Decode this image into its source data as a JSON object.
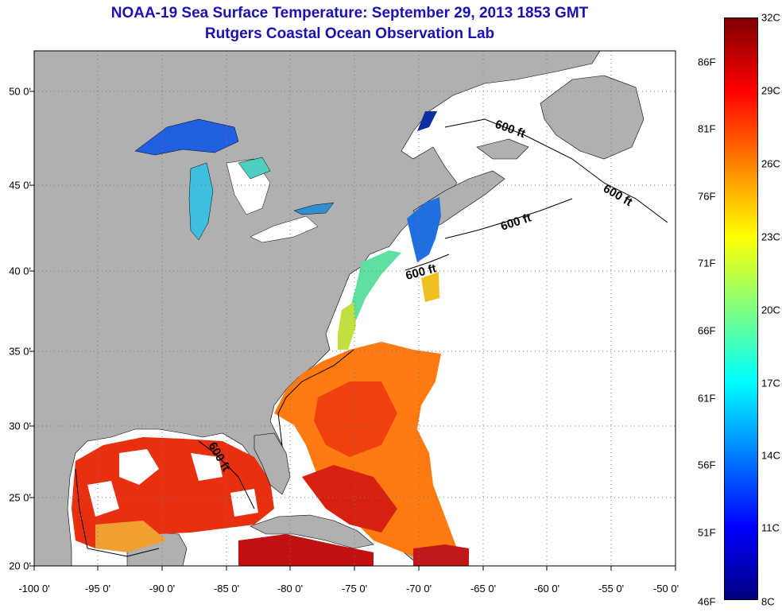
{
  "title": {
    "line1": "NOAA-19 Sea Surface Temperature:  September 29, 2013 1853 GMT",
    "line2": "Rutgers Coastal Ocean Observation Lab"
  },
  "axes": {
    "x_ticks": [
      "-100 0'",
      "-95 0'",
      "-90 0'",
      "-85 0'",
      "-80 0'",
      "-75 0'",
      "-70 0'",
      "-65 0'",
      "-60 0'",
      "-55 0'",
      "-50 0'"
    ],
    "y_ticks": [
      "50 0'",
      "45 0'",
      "40 0'",
      "35 0'",
      "30 0'",
      "25 0'",
      "20 0'"
    ],
    "x_range": [
      -100,
      -50
    ],
    "y_range": [
      20,
      52.5
    ],
    "grid": "dotted"
  },
  "colorbar": {
    "fahrenheit": [
      "86F",
      "81F",
      "76F",
      "71F",
      "66F",
      "61F",
      "56F",
      "51F",
      "46F"
    ],
    "celsius": [
      "32C",
      "29C",
      "26C",
      "23C",
      "20C",
      "17C",
      "14C",
      "11C",
      "8C"
    ],
    "colors": [
      "#800000",
      "#ff0000",
      "#ff8000",
      "#ffff00",
      "#80ff80",
      "#00ffff",
      "#0080ff",
      "#0000ff",
      "#000080"
    ]
  },
  "contours": {
    "label": "600 ft"
  },
  "colors": {
    "land": "#b0b0b0",
    "no_data": "#ffffff",
    "title": "#1a10b4"
  }
}
